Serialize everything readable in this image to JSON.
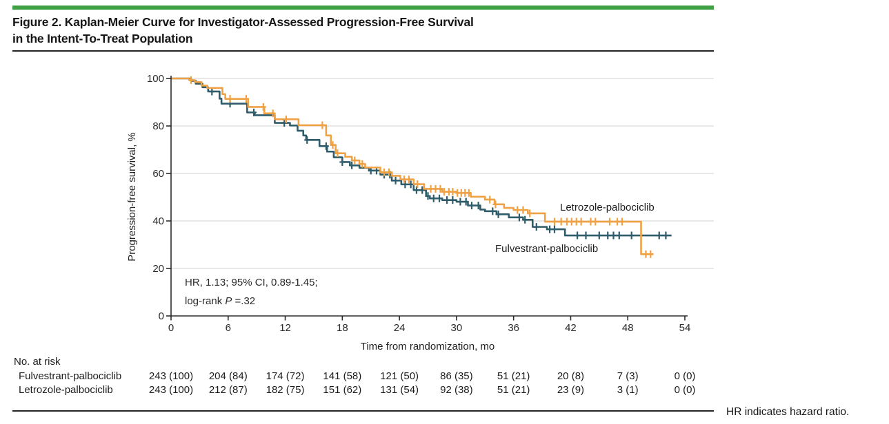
{
  "figure": {
    "title_line1": "Figure 2. Kaplan-Meier Curve for Investigator-Assessed Progression-Free Survival",
    "title_line2": "in the Intent-To-Treat Population",
    "footnote": "HR indicates hazard ratio.",
    "accent_color": "#3FA044"
  },
  "chart_data": {
    "type": "line",
    "subtype": "kaplan-meier-step",
    "title": "",
    "xlabel": "Time from randomization, mo",
    "ylabel": "Progression-free survival, %",
    "xlim": [
      0,
      54
    ],
    "ylim": [
      0,
      100
    ],
    "xticks": [
      0,
      6,
      12,
      18,
      24,
      30,
      36,
      42,
      48,
      54
    ],
    "yticks": [
      0,
      20,
      40,
      60,
      80,
      100
    ],
    "grid": "horizontal",
    "gridline_color": "#DBDBDB",
    "axis_color": "#2b2b2b",
    "annotation": {
      "line1": "HR, 1.13; 95% CI, 0.89-1.45;",
      "line2_prefix": "log-rank ",
      "line2_italic": "P",
      "line2_suffix": " =.32"
    },
    "series": [
      {
        "name": "Letrozole-palbociclib",
        "color": "#F0A143",
        "end": 50.7,
        "steps": [
          [
            0,
            100
          ],
          [
            1.9,
            99.3
          ],
          [
            2.5,
            98.5
          ],
          [
            3.2,
            97
          ],
          [
            3.8,
            96
          ],
          [
            5.4,
            93.4
          ],
          [
            5.7,
            91.4
          ],
          [
            8.1,
            88
          ],
          [
            9.8,
            85.3
          ],
          [
            10.9,
            82.8
          ],
          [
            13.4,
            80.3
          ],
          [
            16.3,
            76
          ],
          [
            16.8,
            72
          ],
          [
            17.3,
            68.5
          ],
          [
            18.3,
            67
          ],
          [
            19,
            65.5
          ],
          [
            19.8,
            64
          ],
          [
            20.4,
            62.5
          ],
          [
            22,
            60.5
          ],
          [
            23.2,
            59
          ],
          [
            24.1,
            57.5
          ],
          [
            25.5,
            55.5
          ],
          [
            26.6,
            53.5
          ],
          [
            28.5,
            52.3
          ],
          [
            30,
            51.8
          ],
          [
            31.5,
            50.2
          ],
          [
            33,
            49
          ],
          [
            34,
            47
          ],
          [
            35,
            45.5
          ],
          [
            36,
            44.6
          ],
          [
            37.5,
            43.2
          ],
          [
            39.3,
            39.7
          ],
          [
            49.4,
            26
          ]
        ],
        "censors": [
          2.1,
          6.2,
          7.9,
          9.7,
          10.7,
          12.1,
          15.9,
          17,
          17.5,
          19.3,
          20.1,
          22.4,
          22.9,
          24.5,
          25,
          25.9,
          27.3,
          27.8,
          28.3,
          28.7,
          29.2,
          29.6,
          30.1,
          30.5,
          30.9,
          31.3,
          33.5,
          34.1,
          36.4,
          37,
          37.7,
          40.3,
          41,
          41.6,
          42.1,
          42.6,
          43.1,
          44.1,
          44.6,
          46.1,
          46.9,
          47.4,
          49.9,
          50.4
        ]
      },
      {
        "name": "Fulvestrant-palbociclib",
        "color": "#2F5C6B",
        "end": 52.6,
        "steps": [
          [
            0,
            100
          ],
          [
            2.1,
            99
          ],
          [
            2.6,
            97.8
          ],
          [
            3.3,
            96.3
          ],
          [
            3.9,
            94.5
          ],
          [
            5.1,
            91.5
          ],
          [
            5.3,
            89.4
          ],
          [
            8,
            85.7
          ],
          [
            8.8,
            84.5
          ],
          [
            10.9,
            81.3
          ],
          [
            12.5,
            80.2
          ],
          [
            13.3,
            78
          ],
          [
            13.9,
            76
          ],
          [
            14.2,
            74.1
          ],
          [
            15.6,
            71.5
          ],
          [
            16.4,
            69.2
          ],
          [
            17.1,
            66.8
          ],
          [
            18,
            64.8
          ],
          [
            18.8,
            63.4
          ],
          [
            19.8,
            62.4
          ],
          [
            20.8,
            61.2
          ],
          [
            22,
            59.5
          ],
          [
            23.2,
            57
          ],
          [
            24.2,
            55.4
          ],
          [
            25.5,
            53
          ],
          [
            26.8,
            50.5
          ],
          [
            27.2,
            49.5
          ],
          [
            28.5,
            48.8
          ],
          [
            30,
            48.1
          ],
          [
            31.2,
            46.5
          ],
          [
            32.5,
            44.8
          ],
          [
            33,
            44.1
          ],
          [
            34.2,
            42.8
          ],
          [
            35.5,
            41.5
          ],
          [
            37,
            40.5
          ],
          [
            38,
            37.5
          ],
          [
            39.5,
            36.5
          ],
          [
            41.4,
            33.9
          ]
        ],
        "censors": [
          4.3,
          6.2,
          8.7,
          11.9,
          14.3,
          16.3,
          18,
          19,
          21,
          21.6,
          22.4,
          23,
          23.6,
          24.6,
          25.2,
          25.8,
          26.4,
          27,
          27.6,
          28.2,
          29,
          29.6,
          30.4,
          31,
          31.6,
          32.3,
          33.8,
          34.4,
          36.6,
          37.2,
          38.4,
          39.8,
          40.3,
          42.7,
          43.6,
          45,
          45.9,
          46.5,
          47.1,
          48.4,
          51.3,
          52
        ]
      }
    ],
    "at_risk": {
      "heading": "No. at risk",
      "times": [
        0,
        6,
        12,
        18,
        24,
        30,
        36,
        42,
        48,
        54
      ],
      "rows": [
        {
          "name": "Fulvestrant-palbociclib",
          "values": [
            "243 (100)",
            "204 (84)",
            "174 (72)",
            "141 (58)",
            "121 (50)",
            "86 (35)",
            "51 (21)",
            "20 (8)",
            "7 (3)",
            "0 (0)"
          ]
        },
        {
          "name": "Letrozole-palbociclib",
          "values": [
            "243 (100)",
            "212 (87)",
            "182 (75)",
            "151 (62)",
            "131 (54)",
            "92 (38)",
            "51 (21)",
            "23 (9)",
            "3 (1)",
            "0 (0)"
          ]
        }
      ]
    }
  }
}
